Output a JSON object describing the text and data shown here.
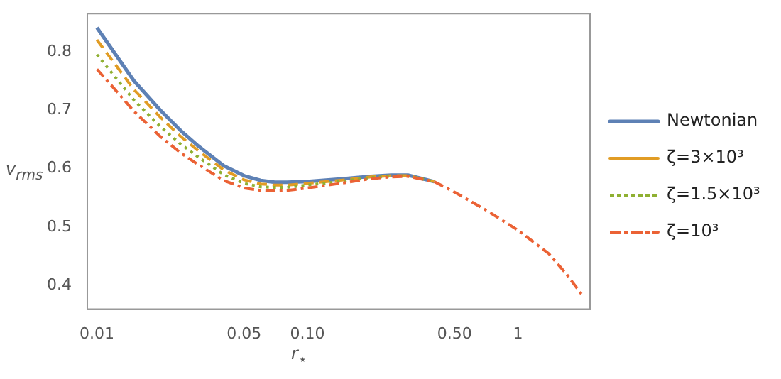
{
  "chart_data": {
    "type": "line",
    "xlabel": "r$_{⋆}$",
    "ylabel": "v$_{rms}$",
    "log": "x",
    "grid": false,
    "legend": "right",
    "marker": "none",
    "xlim": [
      0.009,
      2.2
    ],
    "xticks": [
      0.01,
      0.05,
      {
        "value": 0.1,
        "label": "0.10"
      },
      {
        "value": 0.5,
        "label": "0.50"
      },
      1
    ],
    "ylim": [
      0.36,
      0.865
    ],
    "yticks": [
      0.4,
      0.5,
      0.6,
      0.7,
      0.8
    ],
    "x": [
      0.01,
      0.012,
      0.015,
      0.02,
      0.025,
      0.03,
      0.04,
      0.05,
      0.06,
      0.07,
      0.08,
      0.1,
      0.15,
      0.2,
      0.25,
      0.3,
      0.4,
      0.5,
      0.7,
      1,
      1.4,
      1.7,
      2
    ],
    "series": [
      {
        "name": "Newtonian",
        "color": "#5e81b5",
        "line_style": "solid",
        "values": [
          0.841,
          0.8,
          0.75,
          0.7,
          0.665,
          0.64,
          0.605,
          0.588,
          0.58,
          0.577,
          0.577,
          0.578,
          0.583,
          0.587,
          0.589,
          0.589,
          0.578,
          null,
          null,
          null,
          null,
          null,
          null
        ]
      },
      {
        "name": "ζ=3×10³",
        "color": "#e19c24",
        "line_style": "dashed",
        "values": [
          0.82,
          0.782,
          0.735,
          0.688,
          0.655,
          0.632,
          0.598,
          0.581,
          0.574,
          0.572,
          0.572,
          0.575,
          0.581,
          0.586,
          0.588,
          0.588,
          0.578,
          null,
          null,
          null,
          null,
          null,
          null
        ]
      },
      {
        "name": "ζ=1.5×10³",
        "color": "#8fb032",
        "line_style": "dotted",
        "values": [
          0.795,
          0.76,
          0.717,
          0.672,
          0.642,
          0.621,
          0.59,
          0.575,
          0.569,
          0.568,
          0.568,
          0.572,
          0.579,
          0.585,
          0.587,
          0.588,
          0.578,
          null,
          null,
          null,
          null,
          null,
          null
        ]
      },
      {
        "name": "ζ=10³",
        "color": "#eb6235",
        "line_style": "dashdot",
        "values": [
          0.77,
          0.738,
          0.698,
          0.655,
          0.627,
          0.608,
          0.58,
          0.567,
          0.563,
          0.562,
          0.563,
          0.567,
          0.576,
          0.583,
          0.586,
          0.587,
          0.578,
          0.56,
          0.53,
          0.495,
          0.455,
          0.42,
          0.386
        ]
      }
    ]
  }
}
